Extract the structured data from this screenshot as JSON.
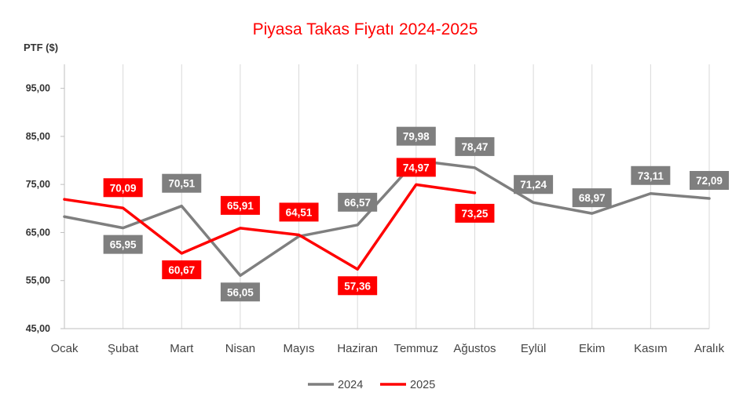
{
  "chart_data": {
    "type": "line",
    "title": "Piyasa Takas Fiyatı  2024-2025",
    "ylabel": "PTF ($)",
    "xlabel": "",
    "categories": [
      "Ocak",
      "Şubat",
      "Mart",
      "Nisan",
      "Mayıs",
      "Haziran",
      "Temmuz",
      "Ağustos",
      "Eylül",
      "Ekim",
      "Kasım",
      "Aralık"
    ],
    "ylim": [
      45,
      100
    ],
    "yticks": [
      "45,00",
      "55,00",
      "65,00",
      "75,00",
      "85,00",
      "95,00"
    ],
    "ytick_values": [
      45,
      55,
      65,
      75,
      85,
      95
    ],
    "grid": "vertical",
    "legend": "bottom",
    "series": [
      {
        "name": "2024",
        "color": "#7f7f7f",
        "values": [
          68.3,
          65.95,
          70.51,
          56.05,
          64.2,
          66.57,
          79.98,
          78.47,
          71.24,
          68.97,
          73.11,
          72.09
        ],
        "labels": [
          "",
          "65,95",
          "70,51",
          "56,05",
          "",
          "66,57",
          "79,98",
          "78,47",
          "71,24",
          "68,97",
          "73,11",
          "72,09"
        ]
      },
      {
        "name": "2025",
        "color": "#ff0000",
        "values": [
          71.9,
          70.09,
          60.67,
          65.91,
          64.51,
          57.36,
          74.97,
          73.25,
          null,
          null,
          null,
          null
        ],
        "labels": [
          "",
          "70,09",
          "60,67",
          "65,91",
          "64,51",
          "57,36",
          "74,97",
          "73,25",
          "",
          "",
          "",
          ""
        ]
      }
    ]
  }
}
